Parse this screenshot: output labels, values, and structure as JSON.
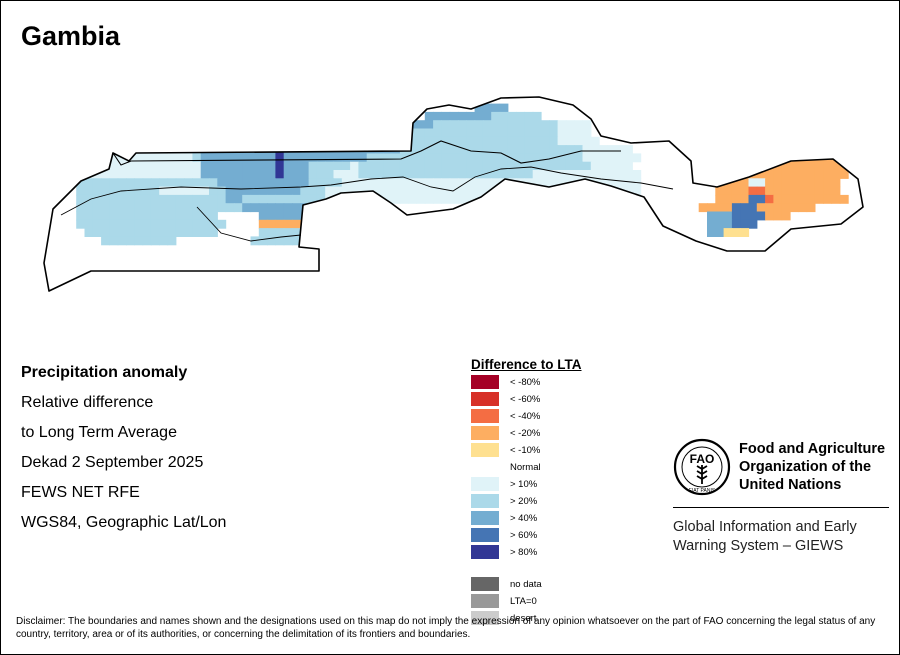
{
  "map": {
    "title": "Gambia",
    "info_lines": [
      "Precipitation anomaly",
      "Relative difference",
      "to Long Term Average",
      "Dekad 2 September 2025",
      "FEWS NET RFE",
      "WGS84, Geographic Lat/Lon"
    ],
    "disclaimer": "Disclaimer: The boundaries and names shown and the designations used on this map do not imply the expression of any opinion whatsoever on the part of FAO concerning the legal status of any country, territory, area or of its authorities, or concerning the delimitation of its frontiers and boundaries."
  },
  "legend": {
    "title": "Difference to LTA",
    "classes": [
      {
        "key": "m80",
        "label": "< -80%",
        "color": "#a50026"
      },
      {
        "key": "m60",
        "label": "< -60%",
        "color": "#d73027"
      },
      {
        "key": "m40",
        "label": "< -40%",
        "color": "#f46d43"
      },
      {
        "key": "m20",
        "label": "< -20%",
        "color": "#fdae61"
      },
      {
        "key": "m10",
        "label": "< -10%",
        "color": "#fee090"
      },
      {
        "key": "normal",
        "label": "Normal",
        "color": "#ffffff"
      },
      {
        "key": "p10",
        "label": "> 10%",
        "color": "#e0f3f8"
      },
      {
        "key": "p20",
        "label": "> 20%",
        "color": "#abd9e9"
      },
      {
        "key": "p40",
        "label": "> 40%",
        "color": "#74add1"
      },
      {
        "key": "p60",
        "label": "> 60%",
        "color": "#4575b4"
      },
      {
        "key": "p80",
        "label": "> 80%",
        "color": "#313695"
      }
    ],
    "extra_classes": [
      {
        "key": "nodata",
        "label": "no data",
        "color": "#666666"
      },
      {
        "key": "lta0",
        "label": "LTA=0",
        "color": "#999999"
      },
      {
        "key": "desert",
        "label": "desert",
        "color": "#cccccc"
      }
    ]
  },
  "organization": {
    "name_lines": [
      "Food and Agriculture",
      "Organization of the",
      "United Nations"
    ],
    "logo_letters": "FAO",
    "logo_motto": "FIAT PANIS",
    "system_lines": [
      "Global Information and Early",
      "Warning System – GIEWS"
    ]
  },
  "anomaly_grid": {
    "cell_size_deg": 0.1,
    "west_lon": -17.0,
    "north_lat": 13.9,
    "rows": [
      "...................................................................................................",
      "...................................................................................................",
      "....................................................4444...........................................",
      "..............................................44444444222222......................................",
      "............2.2222222222222222222222222224444442222222222222221111.................................",
      "............2.2222244444445442222222222245442222222222222222221111...............................3",
      ".......111111222222444444444444444444444442222222222222222222211111...........................3333",
      ".......1111111111224444444445444444444444442222222222222222222222111111.....................333333",
      ".......11111111111244444444454444444444222222222222222222222222221111111................33333333333",
      "......11111111111114444444445444222221222222222222222222222222222211111..............3333333333333",
      "....11111111111111144444444454442221112222222222222222222221111111111111...........33333333333333",
      "....22222222222222222444444444442222111111111111111111111111111111111111.........333311333333333",
      "....22222222221111112244444444422211111111111111111111111111111111111111.........333366333333333",
      "....2222222222222222224422222222221111111111111111111111111111111111.............3333556333333333",
      "....222222222222222222224444444422222..........................................33335553333333..",
      "....22222222222222222.....4444444...............................................4445555333....",
      "....222222222222222222....3333333...............................................444555........",
      ".....2222222222222222.....222222................................................44.............",
      ".......222222222.........2222222..................................................................",
      "................................................................................................."
    ]
  }
}
